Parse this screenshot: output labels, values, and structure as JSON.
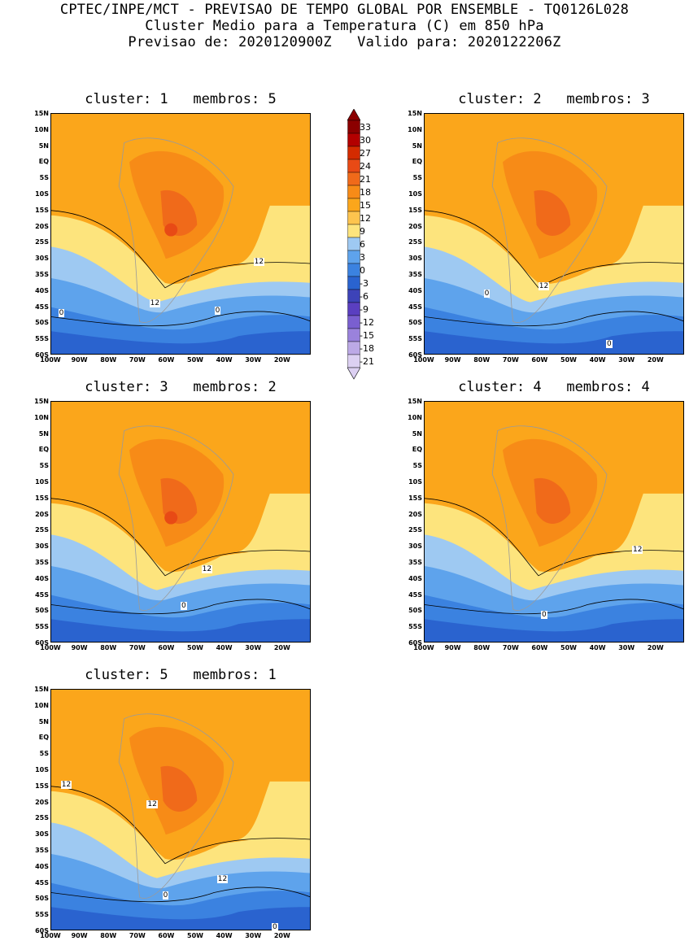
{
  "header": {
    "line1": "CPTEC/INPE/MCT - PREVISAO DE TEMPO GLOBAL POR ENSEMBLE - TQ0126L028",
    "line2": "Cluster Medio para a Temperatura (C) em 850 hPa",
    "line3": "Previsao de: 2020120900Z   Valido para: 2020122206Z"
  },
  "lat_labels": [
    "15N",
    "10N",
    "5N",
    "EQ",
    "5S",
    "10S",
    "15S",
    "20S",
    "25S",
    "30S",
    "35S",
    "40S",
    "45S",
    "50S",
    "55S",
    "60S"
  ],
  "lon_labels": [
    "100W",
    "90W",
    "80W",
    "70W",
    "60W",
    "50W",
    "40W",
    "30W",
    "20W"
  ],
  "colorbar": {
    "labels": [
      "33",
      "30",
      "27",
      "24",
      "21",
      "18",
      "15",
      "12",
      "9",
      "6",
      "3",
      "0",
      "-3",
      "-6",
      "-9",
      "-12",
      "-15",
      "-18",
      "-21"
    ],
    "colors": [
      "#8b0000",
      "#b30000",
      "#d42b00",
      "#e84a15",
      "#f06a1a",
      "#f78b17",
      "#fba61b",
      "#fdc44e",
      "#fde47d",
      "#9ec9f2",
      "#5ea3ec",
      "#3b82e0",
      "#2a63cf",
      "#3d43b8",
      "#5a3fc0",
      "#7a5fd0",
      "#9a82dc",
      "#bca9e6",
      "#dcd0f2"
    ]
  },
  "panels": [
    {
      "title": "cluster: 1   membros: 5",
      "labels_12": [
        "12",
        "12"
      ],
      "labels_0": [
        "0",
        "0"
      ]
    },
    {
      "title": "cluster: 2   membros: 3",
      "labels_12": [
        "12"
      ],
      "labels_0": [
        "0",
        "0"
      ]
    },
    {
      "title": "cluster: 3   membros: 2",
      "labels_12": [
        "12"
      ],
      "labels_0": [
        "0"
      ]
    },
    {
      "title": "cluster: 4   membros: 4",
      "labels_12": [
        "12"
      ],
      "labels_0": [
        "0"
      ]
    },
    {
      "title": "cluster: 5   membros: 1",
      "labels_12": [
        "12",
        "12",
        "12"
      ],
      "labels_0": [
        "0",
        "0"
      ]
    }
  ]
}
